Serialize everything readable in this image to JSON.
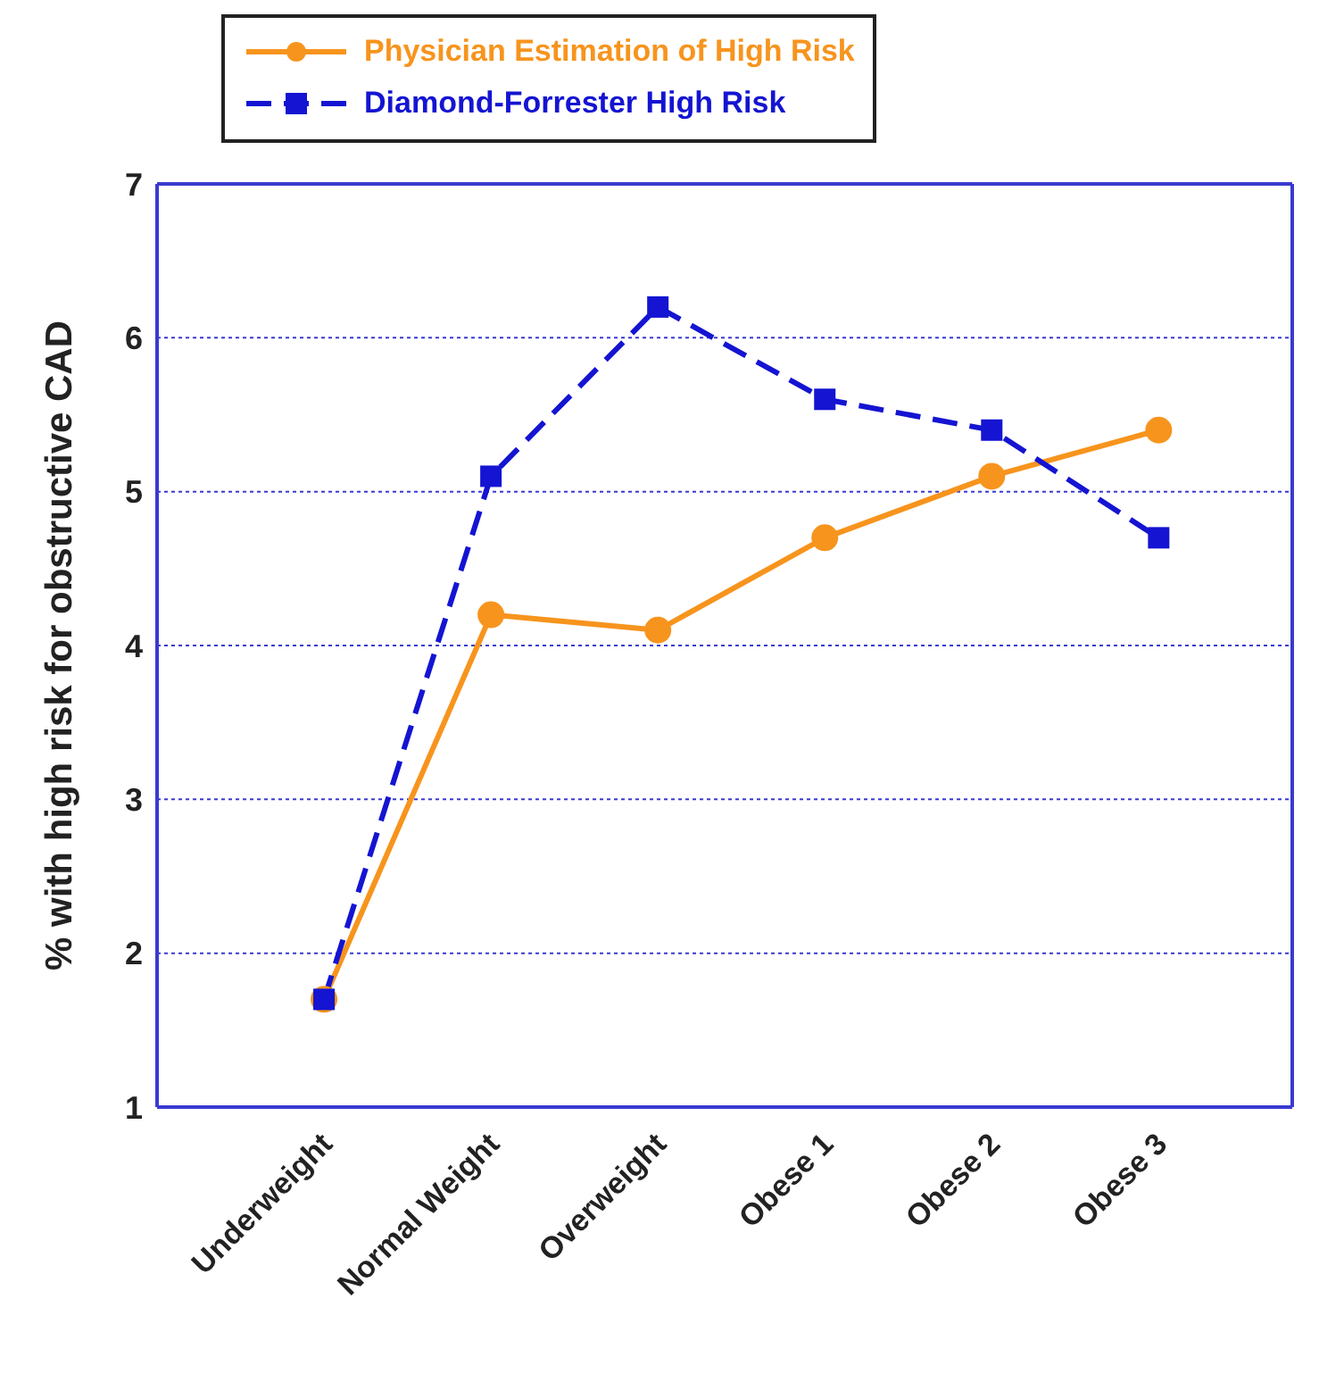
{
  "chart_data": {
    "type": "line",
    "ylabel": "% with high risk for obstructive CAD",
    "categories": [
      "Underweight",
      "Normal Weight",
      "Overweight",
      "Obese 1",
      "Obese 2",
      "Obese 3"
    ],
    "series": [
      {
        "name": "Physician Estimation of High Risk",
        "color": "#f7941d",
        "values": [
          1.7,
          4.2,
          4.1,
          4.7,
          5.1,
          5.4
        ],
        "marker": "circle",
        "line_style": "solid"
      },
      {
        "name": "Diamond-Forrester High Risk",
        "color": "#1414d2",
        "values": [
          1.7,
          5.1,
          6.2,
          5.6,
          5.4,
          4.7
        ],
        "marker": "square",
        "line_style": "dashed"
      }
    ],
    "ylim": [
      1,
      7
    ],
    "yticks": [
      1,
      2,
      3,
      4,
      5,
      6,
      7
    ],
    "grid": "y",
    "legend": "top left"
  }
}
